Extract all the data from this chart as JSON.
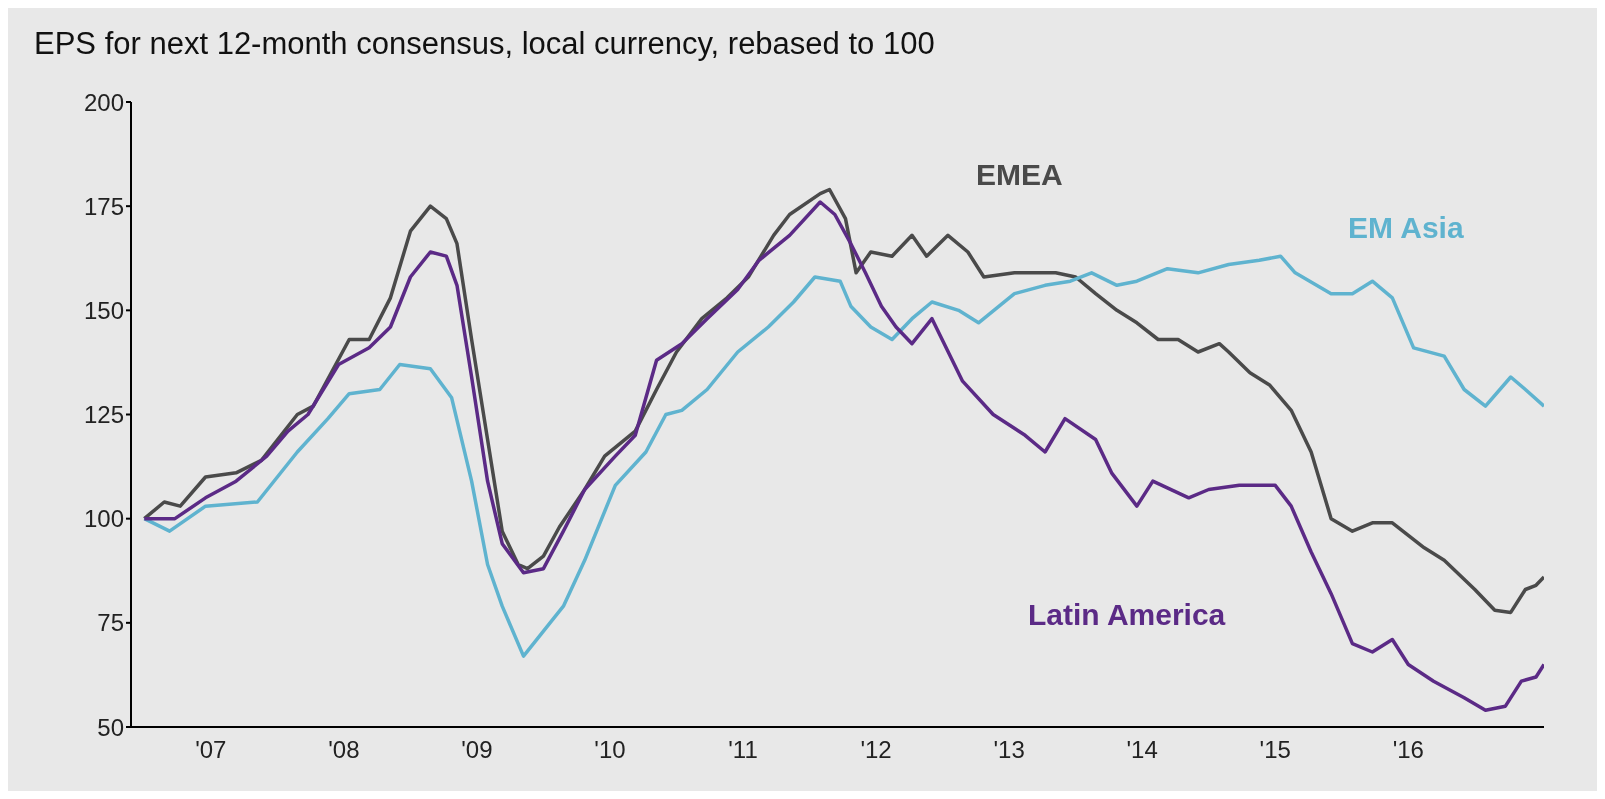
{
  "chart_data": {
    "type": "line",
    "title": "EPS for next 12-month consensus, local currency, rebased to 100",
    "xlim": [
      2006.4,
      2017.02
    ],
    "xticks": [
      {
        "value": 2007,
        "label": "'07"
      },
      {
        "value": 2008,
        "label": "'08"
      },
      {
        "value": 2009,
        "label": "'09"
      },
      {
        "value": 2010,
        "label": "'10"
      },
      {
        "value": 2011,
        "label": "'11"
      },
      {
        "value": 2012,
        "label": "'12"
      },
      {
        "value": 2013,
        "label": "'13"
      },
      {
        "value": 2014,
        "label": "'14"
      },
      {
        "value": 2015,
        "label": "'15"
      },
      {
        "value": 2016,
        "label": "'16"
      }
    ],
    "ylim": [
      50,
      200
    ],
    "yticks": [
      50,
      75,
      100,
      125,
      150,
      175,
      200
    ],
    "marker": "none",
    "line_style": "solid",
    "series": [
      {
        "name": "EMEA",
        "color": "#4a4a4a",
        "x": [
          2006.5,
          2006.65,
          2006.77,
          2006.96,
          2007.19,
          2007.38,
          2007.65,
          2007.77,
          2008.04,
          2008.19,
          2008.35,
          2008.5,
          2008.65,
          2008.77,
          2008.85,
          2008.96,
          2009.08,
          2009.19,
          2009.31,
          2009.38,
          2009.5,
          2009.62,
          2009.81,
          2009.96,
          2010.19,
          2010.35,
          2010.5,
          2010.69,
          2010.88,
          2011.04,
          2011.23,
          2011.35,
          2011.58,
          2011.65,
          2011.77,
          2011.85,
          2011.96,
          2012.12,
          2012.27,
          2012.38,
          2012.54,
          2012.69,
          2012.81,
          2013.04,
          2013.19,
          2013.35,
          2013.5,
          2013.65,
          2013.81,
          2013.96,
          2014.12,
          2014.27,
          2014.42,
          2014.58,
          2014.65,
          2014.81,
          2014.96,
          2015.12,
          2015.27,
          2015.42,
          2015.58,
          2015.73,
          2015.88,
          2016.12,
          2016.27,
          2016.5,
          2016.65,
          2016.77,
          2016.88,
          2016.96,
          2017.02
        ],
        "values": [
          100,
          104,
          103,
          110,
          111,
          114,
          125,
          127,
          143,
          143,
          153,
          169,
          175,
          172,
          166,
          143,
          119,
          97,
          89,
          88,
          91,
          98,
          107,
          115,
          121,
          131,
          140,
          148,
          153,
          158,
          168,
          173,
          178,
          179,
          172,
          159,
          164,
          163,
          168,
          163,
          168,
          164,
          158,
          159,
          159,
          159,
          158,
          154,
          150,
          147,
          143,
          143,
          140,
          142,
          140,
          135,
          132,
          126,
          116,
          100,
          97,
          99,
          99,
          93,
          90,
          83,
          78,
          77.5,
          83,
          84,
          86
        ]
      },
      {
        "name": "EM Asia",
        "color": "#5fb3cf",
        "x": [
          2006.5,
          2006.69,
          2006.96,
          2007.35,
          2007.65,
          2007.88,
          2008.04,
          2008.27,
          2008.42,
          2008.65,
          2008.81,
          2008.96,
          2009.08,
          2009.19,
          2009.35,
          2009.5,
          2009.65,
          2009.81,
          2010.04,
          2010.27,
          2010.42,
          2010.54,
          2010.73,
          2010.96,
          2011.19,
          2011.38,
          2011.54,
          2011.73,
          2011.81,
          2011.96,
          2012.12,
          2012.27,
          2012.42,
          2012.62,
          2012.77,
          2013.04,
          2013.27,
          2013.46,
          2013.62,
          2013.81,
          2013.96,
          2014.19,
          2014.42,
          2014.65,
          2014.88,
          2015.04,
          2015.15,
          2015.42,
          2015.58,
          2015.73,
          2015.88,
          2016.04,
          2016.27,
          2016.42,
          2016.58,
          2016.77,
          2016.88,
          2017.02
        ],
        "values": [
          100,
          97,
          103,
          104,
          116,
          124,
          130,
          131,
          137,
          136,
          129,
          109,
          89,
          79,
          67,
          73,
          79,
          90,
          108,
          116,
          125,
          126,
          131,
          140,
          146,
          152,
          158,
          157,
          151,
          146,
          143,
          148,
          152,
          150,
          147,
          154,
          156,
          157,
          159,
          156,
          157,
          160,
          159,
          161,
          162,
          163,
          159,
          154,
          154,
          157,
          153,
          141,
          139,
          131,
          127,
          134,
          131,
          127
        ]
      },
      {
        "name": "Latin America",
        "color": "#5b2a86",
        "x": [
          2006.5,
          2006.73,
          2006.96,
          2007.19,
          2007.42,
          2007.58,
          2007.73,
          2007.96,
          2008.19,
          2008.35,
          2008.5,
          2008.65,
          2008.77,
          2008.85,
          2008.96,
          2009.08,
          2009.19,
          2009.35,
          2009.5,
          2009.65,
          2009.81,
          2010.04,
          2010.19,
          2010.35,
          2010.54,
          2010.73,
          2010.96,
          2011.12,
          2011.35,
          2011.58,
          2011.69,
          2011.81,
          2011.92,
          2012.04,
          2012.15,
          2012.27,
          2012.42,
          2012.65,
          2012.88,
          2013.12,
          2013.27,
          2013.42,
          2013.65,
          2013.77,
          2013.96,
          2014.08,
          2014.35,
          2014.5,
          2014.73,
          2015.0,
          2015.12,
          2015.27,
          2015.42,
          2015.58,
          2015.73,
          2015.88,
          2016.0,
          2016.19,
          2016.42,
          2016.58,
          2016.73,
          2016.85,
          2016.96,
          2017.02
        ],
        "values": [
          100,
          100,
          105,
          109,
          115,
          121,
          125,
          137,
          141,
          146,
          158,
          164,
          163,
          156,
          134,
          109,
          94,
          87,
          88,
          97,
          107,
          115,
          120,
          138,
          142,
          148,
          155,
          162,
          168,
          176,
          173,
          166,
          159,
          151,
          146,
          142,
          148,
          133,
          125,
          120,
          116,
          124,
          119,
          111,
          103,
          109,
          105,
          107,
          108,
          108,
          103,
          92,
          82,
          70,
          68,
          71,
          65,
          61,
          57,
          54,
          55,
          61,
          62,
          65
        ]
      }
    ]
  }
}
